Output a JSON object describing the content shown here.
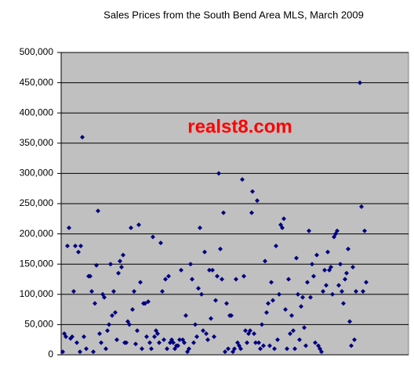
{
  "chart_data": {
    "type": "scatter",
    "title": "Sales Prices from the South Bend Area MLS, March 2009",
    "annotation": "realst8.com",
    "color": "#000080",
    "background": "#c0c0c0",
    "grid": true,
    "xlim": [
      0,
      443
    ],
    "ylim": [
      0,
      500000
    ],
    "yticks": [
      0,
      {
        "value": 50000,
        "label": "50,000"
      },
      {
        "value": 100000,
        "label": "100,000"
      },
      {
        "value": 150000,
        "label": "150,000"
      },
      {
        "value": 200000,
        "label": "200,000"
      },
      {
        "value": 250000,
        "label": "250,000"
      },
      {
        "value": 300000,
        "label": "300,000"
      },
      {
        "value": 350000,
        "label": "350,000"
      },
      {
        "value": 400000,
        "label": "400,000"
      },
      {
        "value": 450000,
        "label": "450,000"
      },
      {
        "value": 500000,
        "label": "500,000"
      }
    ],
    "x": [
      2,
      4,
      6,
      8,
      10,
      12,
      14,
      16,
      18,
      20,
      22,
      24,
      25,
      27,
      29,
      32,
      35,
      37,
      39,
      41,
      43,
      45,
      47,
      49,
      51,
      53,
      55,
      57,
      59,
      61,
      63,
      65,
      67,
      69,
      71,
      73,
      75,
      77,
      79,
      81,
      83,
      85,
      87,
      89,
      91,
      93,
      95,
      97,
      99,
      101,
      103,
      105,
      107,
      109,
      111,
      113,
      115,
      117,
      119,
      121,
      123,
      125,
      127,
      129,
      131,
      133,
      135,
      137,
      139,
      141,
      143,
      145,
      147,
      149,
      151,
      153,
      155,
      157,
      159,
      161,
      163,
      165,
      167,
      169,
      171,
      173,
      175,
      177,
      179,
      181,
      183,
      185,
      187,
      189,
      191,
      193,
      195,
      197,
      199,
      201,
      203,
      205,
      207,
      209,
      211,
      213,
      215,
      217,
      219,
      221,
      223,
      225,
      227,
      229,
      231,
      233,
      235,
      237,
      239,
      241,
      243,
      244,
      246,
      248,
      250,
      252,
      254,
      256,
      258,
      260,
      262,
      264,
      266,
      268,
      270,
      272,
      274,
      276,
      278,
      280,
      282,
      284,
      286,
      288,
      290,
      292,
      294,
      296,
      298,
      300,
      302,
      304,
      306,
      308,
      310,
      312,
      314,
      316,
      318,
      320,
      322,
      324,
      326,
      328,
      330,
      332,
      334,
      336,
      338,
      340,
      342,
      344,
      346,
      348,
      350,
      352,
      354,
      356,
      358,
      360,
      362,
      364,
      366,
      368,
      370,
      372,
      374,
      376,
      381,
      383,
      385,
      387,
      389
    ],
    "values": [
      5000,
      35000,
      30000,
      180000,
      210000,
      27000,
      30000,
      105000,
      180000,
      20000,
      170000,
      5000,
      180000,
      360000,
      30000,
      10000,
      130000,
      130000,
      105000,
      5000,
      85000,
      148000,
      238000,
      35000,
      20000,
      100000,
      95000,
      10000,
      40000,
      50000,
      150000,
      65000,
      105000,
      70000,
      25000,
      135000,
      155000,
      145000,
      165000,
      20000,
      20000,
      55000,
      50000,
      210000,
      75000,
      105000,
      18000,
      40000,
      215000,
      120000,
      10000,
      85000,
      85000,
      30000,
      88000,
      20000,
      10000,
      195000,
      30000,
      40000,
      35000,
      20000,
      185000,
      105000,
      25000,
      125000,
      10000,
      130000,
      20000,
      25000,
      20000,
      10000,
      15000,
      15000,
      25000,
      140000,
      25000,
      20000,
      65000,
      5000,
      10000,
      150000,
      125000,
      20000,
      50000,
      30000,
      110000,
      210000,
      100000,
      40000,
      170000,
      35000,
      25000,
      140000,
      60000,
      140000,
      30000,
      90000,
      130000,
      300000,
      175000,
      125000,
      235000,
      5000,
      85000,
      10000,
      65000,
      65000,
      5000,
      10000,
      125000,
      20000,
      15000,
      10000,
      290000,
      130000,
      40000,
      20000,
      35000,
      40000,
      235000,
      270000,
      35000,
      20000,
      255000,
      20000,
      10000,
      50000,
      15000,
      155000,
      70000,
      85000,
      15000,
      120000,
      90000,
      10000,
      180000,
      25000,
      100000,
      215000,
      210000,
      225000,
      75000,
      10000,
      125000,
      35000,
      65000,
      40000,
      10000,
      160000,
      100000,
      25000,
      80000,
      95000,
      45000,
      15000,
      120000,
      205000,
      95000,
      150000,
      130000,
      20000,
      165000,
      15000,
      10000,
      5000,
      105000,
      140000,
      115000,
      170000,
      140000,
      145000,
      100000,
      195000,
      200000,
      205000,
      115000,
      150000,
      105000,
      85000,
      125000,
      135000,
      175000,
      55000,
      15000,
      145000,
      25000,
      105000,
      450000,
      245000,
      105000,
      205000,
      120000
    ]
  }
}
